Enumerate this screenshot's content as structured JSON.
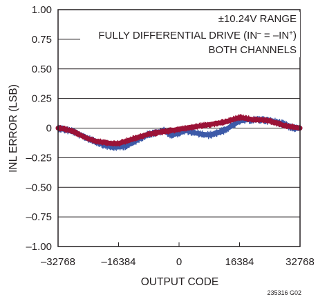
{
  "chart_data": {
    "type": "line",
    "title": "",
    "xlabel": "OUTPUT CODE",
    "ylabel": "INL ERROR (LSB)",
    "xlim": [
      -32768,
      32768
    ],
    "ylim": [
      -1.0,
      1.0
    ],
    "xticks": [
      -32768,
      -16384,
      0,
      16384,
      32768
    ],
    "xtick_labels": [
      "–32768",
      "–16384",
      "0",
      "16384",
      "32768"
    ],
    "yticks": [
      1.0,
      0.75,
      0.5,
      0.25,
      0,
      -0.25,
      -0.5,
      -0.75,
      -1.0
    ],
    "ytick_labels": [
      "1.00",
      "0.75",
      "0.50",
      "0.25",
      "0",
      "–0.25",
      "–0.50",
      "–0.75",
      "–1.00"
    ],
    "grid": true,
    "colors": {
      "series_blue": "#3d5aa8",
      "series_red": "#9b1237",
      "axis": "#231f20"
    },
    "annotations": {
      "line1": "±10.24V RANGE",
      "line2_pre": "FULLY DIFFERENTIAL DRIVE (IN",
      "line2_sup1": "–",
      "line2_mid": " = –IN",
      "line2_sup2": "+",
      "line2_post": ")",
      "line3": "BOTH CHANNELS"
    },
    "figure_id": "235316 G02",
    "series": [
      {
        "color": "#3d5aa8",
        "x": [
          -32768,
          -28672,
          -24576,
          -20480,
          -18432,
          -16384,
          -14336,
          -12288,
          -10240,
          -8192,
          -6144,
          -4096,
          -2048,
          0,
          2048,
          4096,
          6144,
          8192,
          10240,
          12288,
          14336,
          16384,
          18432,
          20480,
          22528,
          24576,
          26624,
          28672,
          30720,
          32768
        ],
        "y": [
          0.0,
          -0.03,
          -0.09,
          -0.14,
          -0.16,
          -0.16,
          -0.15,
          -0.12,
          -0.08,
          -0.05,
          -0.04,
          -0.02,
          -0.06,
          -0.04,
          -0.02,
          -0.04,
          -0.05,
          -0.06,
          -0.04,
          -0.02,
          0.02,
          0.06,
          0.07,
          0.07,
          0.07,
          0.06,
          0.05,
          0.03,
          0.0,
          0.0
        ],
        "band": 0.035
      },
      {
        "color": "#9b1237",
        "x": [
          -32768,
          -30720,
          -28672,
          -26624,
          -24576,
          -22528,
          -20480,
          -18432,
          -16384,
          -14336,
          -12288,
          -10240,
          -8192,
          -6144,
          -4096,
          -2048,
          0,
          2048,
          4096,
          6144,
          8192,
          10240,
          12288,
          14336,
          16384,
          18432,
          20480,
          22528,
          24576,
          26624,
          28672,
          30720,
          32768
        ],
        "y": [
          0.0,
          -0.01,
          -0.03,
          -0.06,
          -0.09,
          -0.11,
          -0.12,
          -0.13,
          -0.13,
          -0.11,
          -0.09,
          -0.07,
          -0.05,
          -0.04,
          -0.03,
          -0.02,
          -0.01,
          0.0,
          0.01,
          0.02,
          0.03,
          0.04,
          0.05,
          0.07,
          0.09,
          0.08,
          0.07,
          0.07,
          0.06,
          0.04,
          0.02,
          0.01,
          0.0
        ],
        "band": 0.03
      }
    ]
  }
}
